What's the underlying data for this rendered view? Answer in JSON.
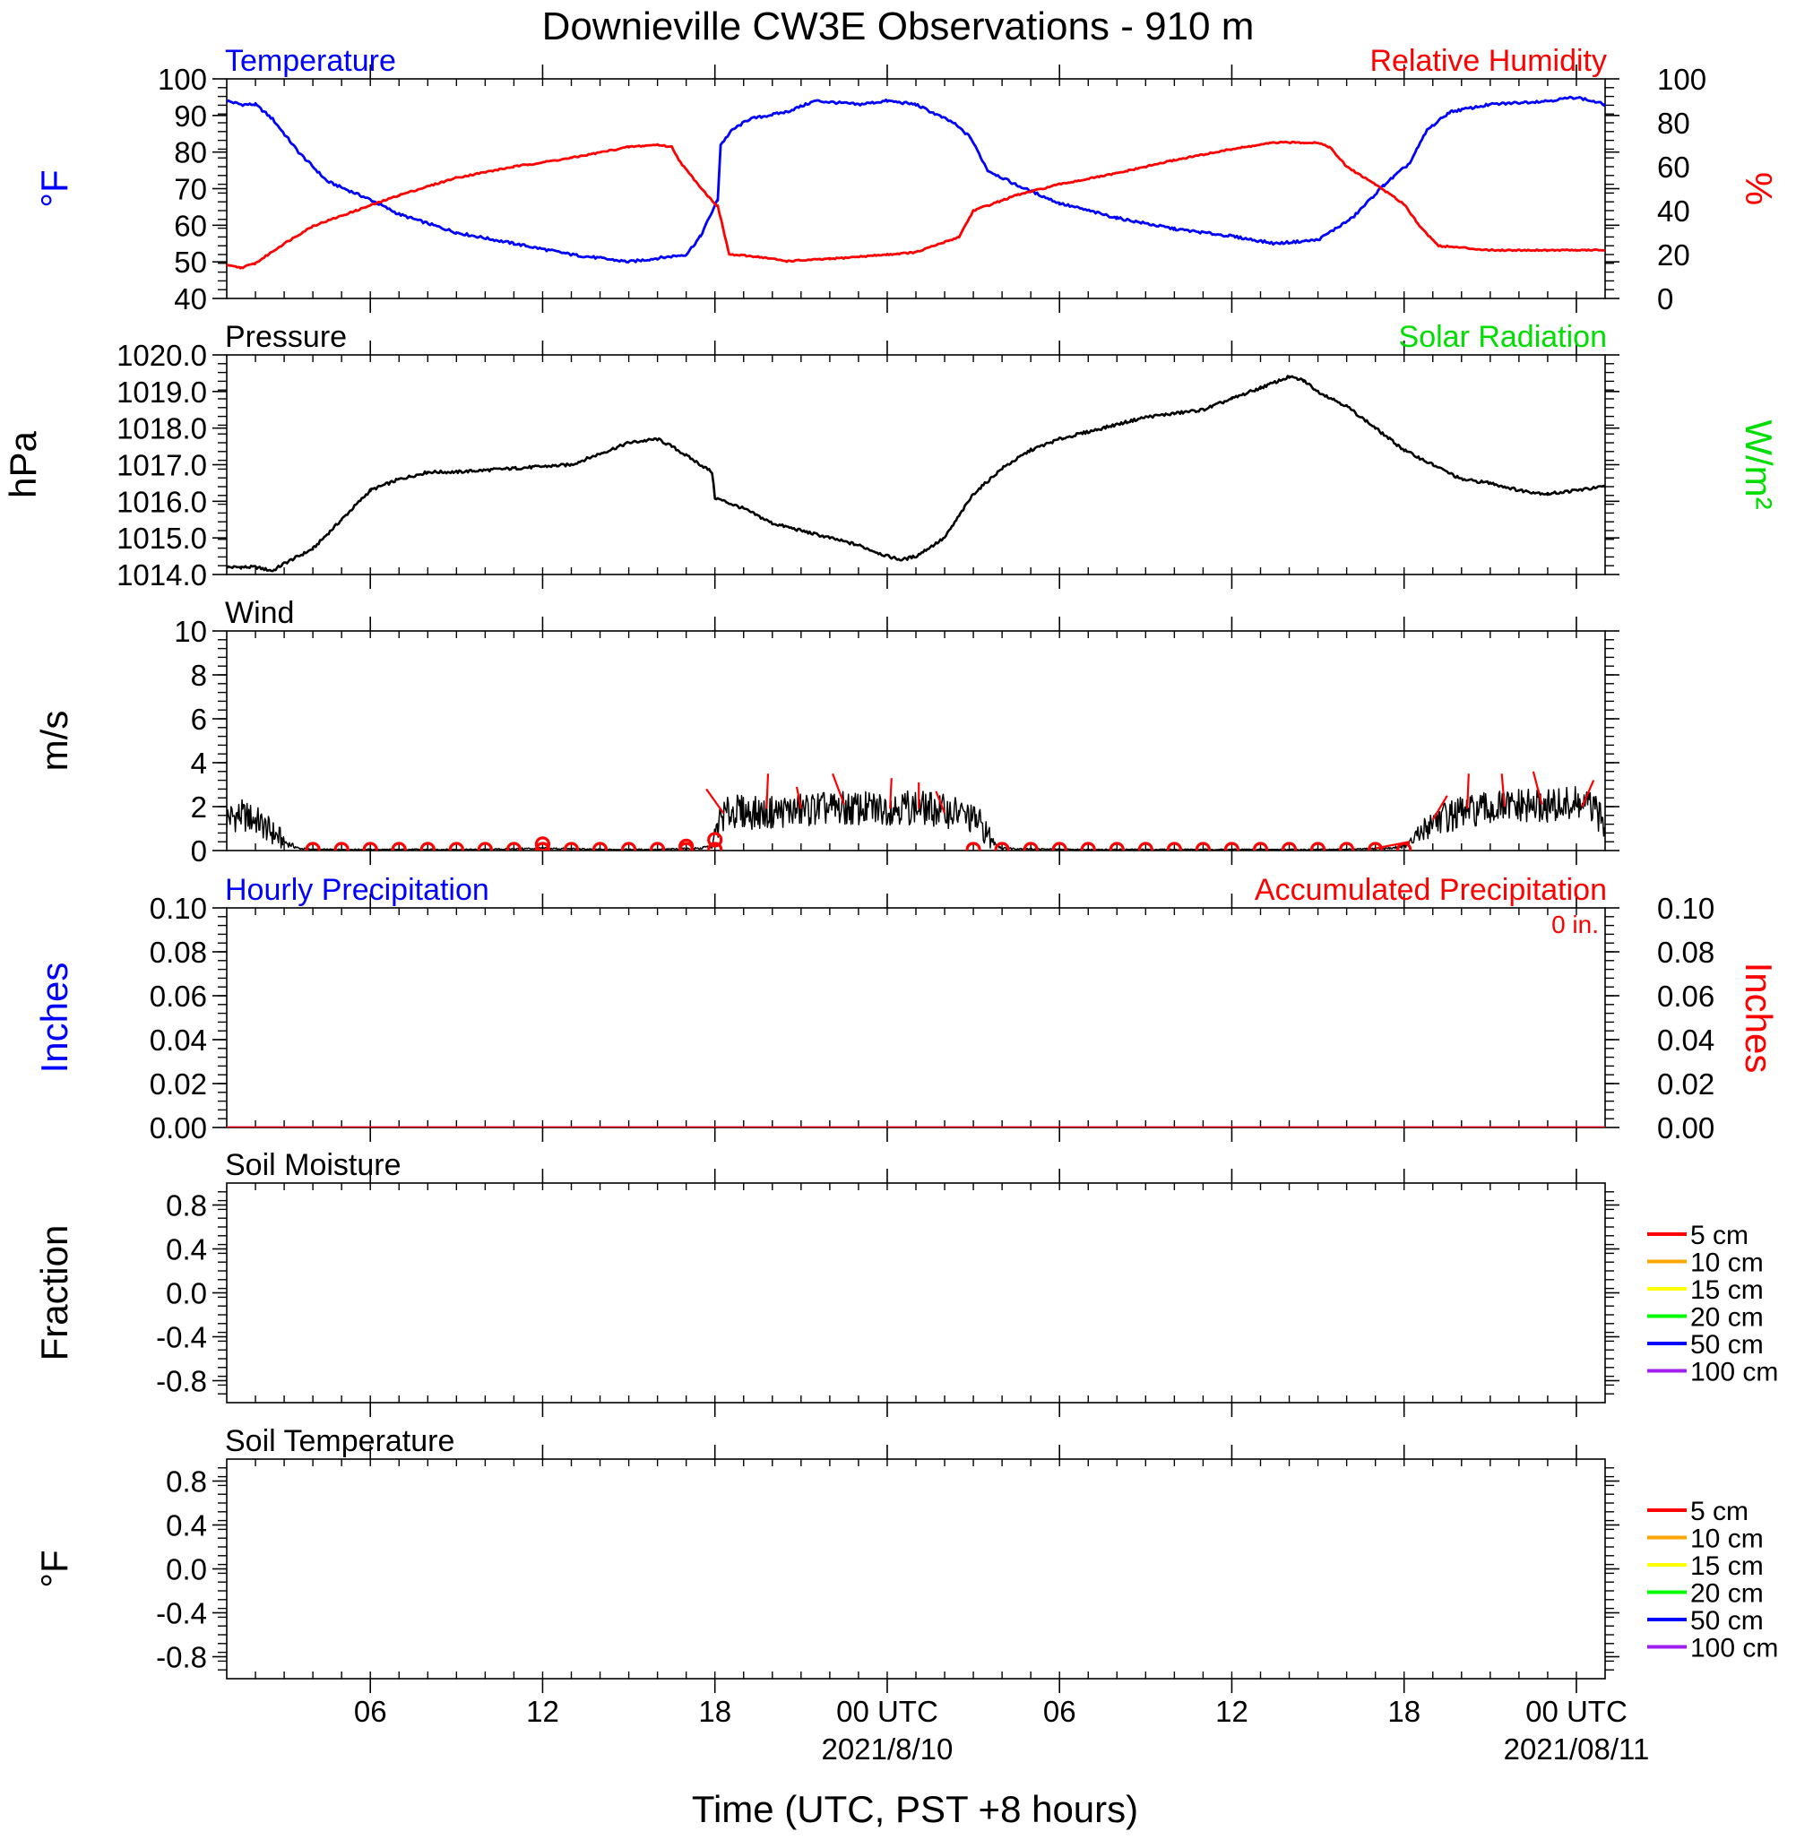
{
  "title": "Downieville CW3E Observations - 910 m",
  "xlabel": "Time (UTC, PST +8 hours)",
  "colors": {
    "temperature": "#0000ff",
    "humidity": "#ff0000",
    "pressure": "#000000",
    "solar": "#00dd00",
    "wind": "#000000",
    "wind_barb": "#ff0000",
    "hourly_precip": "#0000ff",
    "accum_precip": "#ff0000",
    "soil_5": "#ff0000",
    "soil_10": "#ffa500",
    "soil_15": "#ffff00",
    "soil_20": "#00ff00",
    "soil_50": "#0000ff",
    "soil_100": "#a020f0"
  },
  "x_axis": {
    "range_hours": [
      0,
      48
    ],
    "tick_labels": [
      {
        "hour": 5,
        "label": "06",
        "date": ""
      },
      {
        "hour": 11,
        "label": "12",
        "date": ""
      },
      {
        "hour": 17,
        "label": "18",
        "date": ""
      },
      {
        "hour": 23,
        "label": "00 UTC",
        "date": "2021/8/10"
      },
      {
        "hour": 29,
        "label": "06",
        "date": ""
      },
      {
        "hour": 35,
        "label": "12",
        "date": ""
      },
      {
        "hour": 41,
        "label": "18",
        "date": ""
      },
      {
        "hour": 47,
        "label": "00 UTC",
        "date": "2021/08/11"
      }
    ]
  },
  "chart_data": [
    {
      "panel": "temperature",
      "type": "line",
      "left_label": "Temperature",
      "right_label": "Relative Humidity",
      "ylabel_left": "°F",
      "ylabel_right": "%",
      "ylim_left": [
        40,
        100
      ],
      "ylim_right": [
        0,
        100
      ],
      "left_ticks": [
        "40",
        "50",
        "60",
        "70",
        "80",
        "90",
        "100"
      ],
      "right_ticks": [
        "0",
        "20",
        "40",
        "60",
        "80",
        "100"
      ],
      "series": [
        {
          "name": "Temperature",
          "axis": "left",
          "color_key": "temperature",
          "x": [
            0,
            0.5,
            1,
            1.6,
            2.5,
            3.5,
            5,
            6,
            8,
            10,
            12,
            14,
            15,
            16,
            16.5,
            17.1,
            17.2,
            17.6,
            18.2,
            19.5,
            20.5,
            22,
            23,
            24,
            25.3,
            25.9,
            26.5,
            27.5,
            29,
            31,
            33,
            35,
            36.5,
            38,
            39.2,
            40.3,
            41.2,
            41.8,
            42.6,
            44,
            46,
            47,
            48
          ],
          "y": [
            94,
            93,
            93,
            89,
            80,
            72,
            67,
            63,
            58,
            55,
            52,
            50,
            51,
            52,
            57,
            67,
            82,
            86,
            89,
            91,
            94,
            93,
            94,
            93,
            88,
            84,
            75,
            71,
            66,
            62,
            59,
            57,
            55,
            56,
            62,
            71,
            77,
            86,
            91,
            93,
            94,
            95,
            93
          ]
        },
        {
          "name": "Relative Humidity",
          "axis": "right",
          "color_key": "humidity",
          "x": [
            0,
            0.5,
            1,
            2,
            3,
            4.5,
            6,
            8,
            10,
            12,
            14,
            15,
            15.5,
            15.8,
            16.1,
            16.8,
            17.1,
            17.5,
            18.5,
            19.5,
            21,
            23,
            24,
            25.5,
            26,
            27.5,
            29,
            31,
            33,
            35,
            36.5,
            38,
            38.4,
            39,
            40,
            41,
            41.6,
            42.2,
            44,
            46,
            47,
            48
          ],
          "y": [
            15,
            14,
            16,
            25,
            33,
            40,
            47,
            55,
            60,
            64,
            69,
            70,
            69,
            62,
            57,
            46,
            42,
            20,
            19,
            17,
            18,
            20,
            21,
            28,
            40,
            47,
            52,
            57,
            63,
            68,
            71,
            71,
            69,
            60,
            52,
            43,
            32,
            24,
            22,
            22,
            22,
            22
          ]
        }
      ]
    },
    {
      "panel": "pressure",
      "type": "line",
      "left_label": "Pressure",
      "right_label": "Solar Radiation",
      "ylabel_left": "hPa",
      "ylabel_right": "W/m²",
      "ylim_left": [
        1014.0,
        1020.0
      ],
      "left_ticks": [
        "1014.0",
        "1015.0",
        "1016.0",
        "1017.0",
        "1018.0",
        "1019.0",
        "1020.0"
      ],
      "series": [
        {
          "name": "Pressure",
          "axis": "left",
          "color_key": "pressure",
          "x": [
            0,
            0.5,
            1,
            1.6,
            2,
            3,
            4,
            5,
            6,
            7,
            8,
            10,
            12,
            13,
            14,
            15,
            15.5,
            16.3,
            16.9,
            17,
            18,
            19,
            20,
            21,
            22,
            23,
            23.5,
            24,
            25,
            26,
            27,
            28,
            29,
            30,
            31,
            32,
            33,
            34,
            35,
            36,
            37,
            37.5,
            38,
            39,
            40,
            41,
            42,
            43,
            44,
            45,
            46,
            47,
            48
          ],
          "y": [
            1014.2,
            1014.2,
            1014.2,
            1014.1,
            1014.3,
            1014.7,
            1015.5,
            1016.3,
            1016.6,
            1016.8,
            1016.8,
            1016.9,
            1017.0,
            1017.3,
            1017.6,
            1017.7,
            1017.5,
            1017.1,
            1016.8,
            1016.1,
            1015.8,
            1015.4,
            1015.2,
            1015.0,
            1014.8,
            1014.5,
            1014.4,
            1014.5,
            1015.0,
            1016.2,
            1016.9,
            1017.4,
            1017.7,
            1017.9,
            1018.1,
            1018.3,
            1018.4,
            1018.5,
            1018.8,
            1019.1,
            1019.4,
            1019.3,
            1019.0,
            1018.6,
            1018.0,
            1017.4,
            1017.0,
            1016.6,
            1016.5,
            1016.3,
            1016.2,
            1016.3,
            1016.4
          ]
        }
      ]
    },
    {
      "panel": "wind",
      "type": "line",
      "left_label": "Wind",
      "ylabel_left": "m/s",
      "ylim_left": [
        0,
        10
      ],
      "left_ticks": [
        "0",
        "2",
        "4",
        "6",
        "8",
        "10"
      ],
      "series": [
        {
          "name": "Wind",
          "axis": "left",
          "color_key": "wind",
          "x": [
            0,
            0.5,
            1,
            1.5,
            2,
            2.5,
            3,
            5,
            7,
            9,
            11,
            13,
            15,
            16.5,
            16.9,
            17.2,
            17.6,
            18.5,
            19.5,
            20.5,
            21.5,
            22.5,
            23.5,
            24.5,
            25.5,
            26.2,
            26.6,
            27,
            29,
            31,
            33,
            35,
            37,
            39,
            40.5,
            41,
            41.5,
            42,
            43,
            44,
            45,
            46,
            47,
            47.5,
            48
          ],
          "y": [
            1.5,
            1.6,
            1.4,
            0.9,
            0.4,
            0.1,
            0.05,
            0.05,
            0.05,
            0.05,
            0.1,
            0.05,
            0.05,
            0.1,
            0.2,
            1.5,
            1.8,
            1.7,
            1.8,
            1.9,
            1.9,
            1.9,
            2.0,
            1.9,
            1.7,
            1.3,
            0.5,
            0.1,
            0.05,
            0.05,
            0.05,
            0.05,
            0.05,
            0.05,
            0.1,
            0.2,
            0.6,
            1.4,
            1.7,
            1.9,
            2.0,
            2.0,
            2.1,
            2.0,
            1.2
          ]
        }
      ],
      "calm_hours": [
        3,
        4,
        5,
        6,
        7,
        8,
        9,
        10,
        11,
        12,
        13,
        14,
        15,
        16,
        17,
        26,
        27,
        28,
        29,
        30,
        31,
        32,
        33,
        34,
        35,
        36,
        37,
        38,
        39,
        40,
        41
      ],
      "barbs": [
        {
          "x": 17.3,
          "speed": 1.7,
          "dx": -0.6,
          "dy": 1.1
        },
        {
          "x": 18.8,
          "speed": 1.9,
          "dx": 0.05,
          "dy": 1.6
        },
        {
          "x": 20.0,
          "speed": 1.9,
          "dx": -0.15,
          "dy": 1.0
        },
        {
          "x": 21.5,
          "speed": 2.1,
          "dx": -0.4,
          "dy": 1.4
        },
        {
          "x": 23.1,
          "speed": 1.9,
          "dx": 0.05,
          "dy": 1.4
        },
        {
          "x": 24.1,
          "speed": 1.9,
          "dx": 0.0,
          "dy": 1.2
        },
        {
          "x": 25.0,
          "speed": 1.7,
          "dx": -0.3,
          "dy": 1.0
        },
        {
          "x": 41.2,
          "speed": 0.4,
          "dx": -1.2,
          "dy": -0.3
        },
        {
          "x": 42.0,
          "speed": 1.4,
          "dx": 0.5,
          "dy": 1.1
        },
        {
          "x": 43.2,
          "speed": 1.9,
          "dx": 0.05,
          "dy": 1.6
        },
        {
          "x": 44.5,
          "speed": 2.0,
          "dx": -0.1,
          "dy": 1.5
        },
        {
          "x": 45.8,
          "speed": 2.1,
          "dx": -0.3,
          "dy": 1.5
        },
        {
          "x": 47.2,
          "speed": 2.0,
          "dx": 0.4,
          "dy": 1.2
        }
      ]
    },
    {
      "panel": "precipitation",
      "type": "line",
      "left_label": "Hourly Precipitation",
      "right_label": "Accumulated Precipitation",
      "accum_text": "0 in.",
      "ylabel_left": "Inches",
      "ylabel_right": "Inches",
      "ylim_left": [
        0,
        0.1
      ],
      "ylim_right": [
        0,
        0.1
      ],
      "left_ticks": [
        "0.00",
        "0.02",
        "0.04",
        "0.06",
        "0.08",
        "0.10"
      ],
      "right_ticks": [
        "0.00",
        "0.02",
        "0.04",
        "0.06",
        "0.08",
        "0.10"
      ],
      "series": [
        {
          "name": "Hourly Precipitation",
          "axis": "left",
          "color_key": "hourly_precip",
          "x": [
            0,
            48
          ],
          "y": [
            0,
            0
          ]
        },
        {
          "name": "Accumulated Precipitation",
          "axis": "right",
          "color_key": "accum_precip",
          "x": [
            0,
            48
          ],
          "y": [
            0,
            0
          ]
        }
      ]
    },
    {
      "panel": "soil_moisture",
      "type": "line",
      "left_label": "Soil Moisture",
      "ylabel_left": "Fraction",
      "ylim_left": [
        -1,
        1
      ],
      "left_ticks": [
        "-0.8",
        "-0.4",
        "0.0",
        "0.4",
        "0.8"
      ],
      "legend": [
        "5 cm",
        "10 cm",
        "15 cm",
        "20 cm",
        "50 cm",
        "100 cm"
      ],
      "series": []
    },
    {
      "panel": "soil_temperature",
      "type": "line",
      "left_label": "Soil Temperature",
      "ylabel_left": "°F",
      "ylim_left": [
        -1,
        1
      ],
      "left_ticks": [
        "-0.8",
        "-0.4",
        "0.0",
        "0.4",
        "0.8"
      ],
      "legend": [
        "5 cm",
        "10 cm",
        "15 cm",
        "20 cm",
        "50 cm",
        "100 cm"
      ],
      "series": []
    }
  ]
}
